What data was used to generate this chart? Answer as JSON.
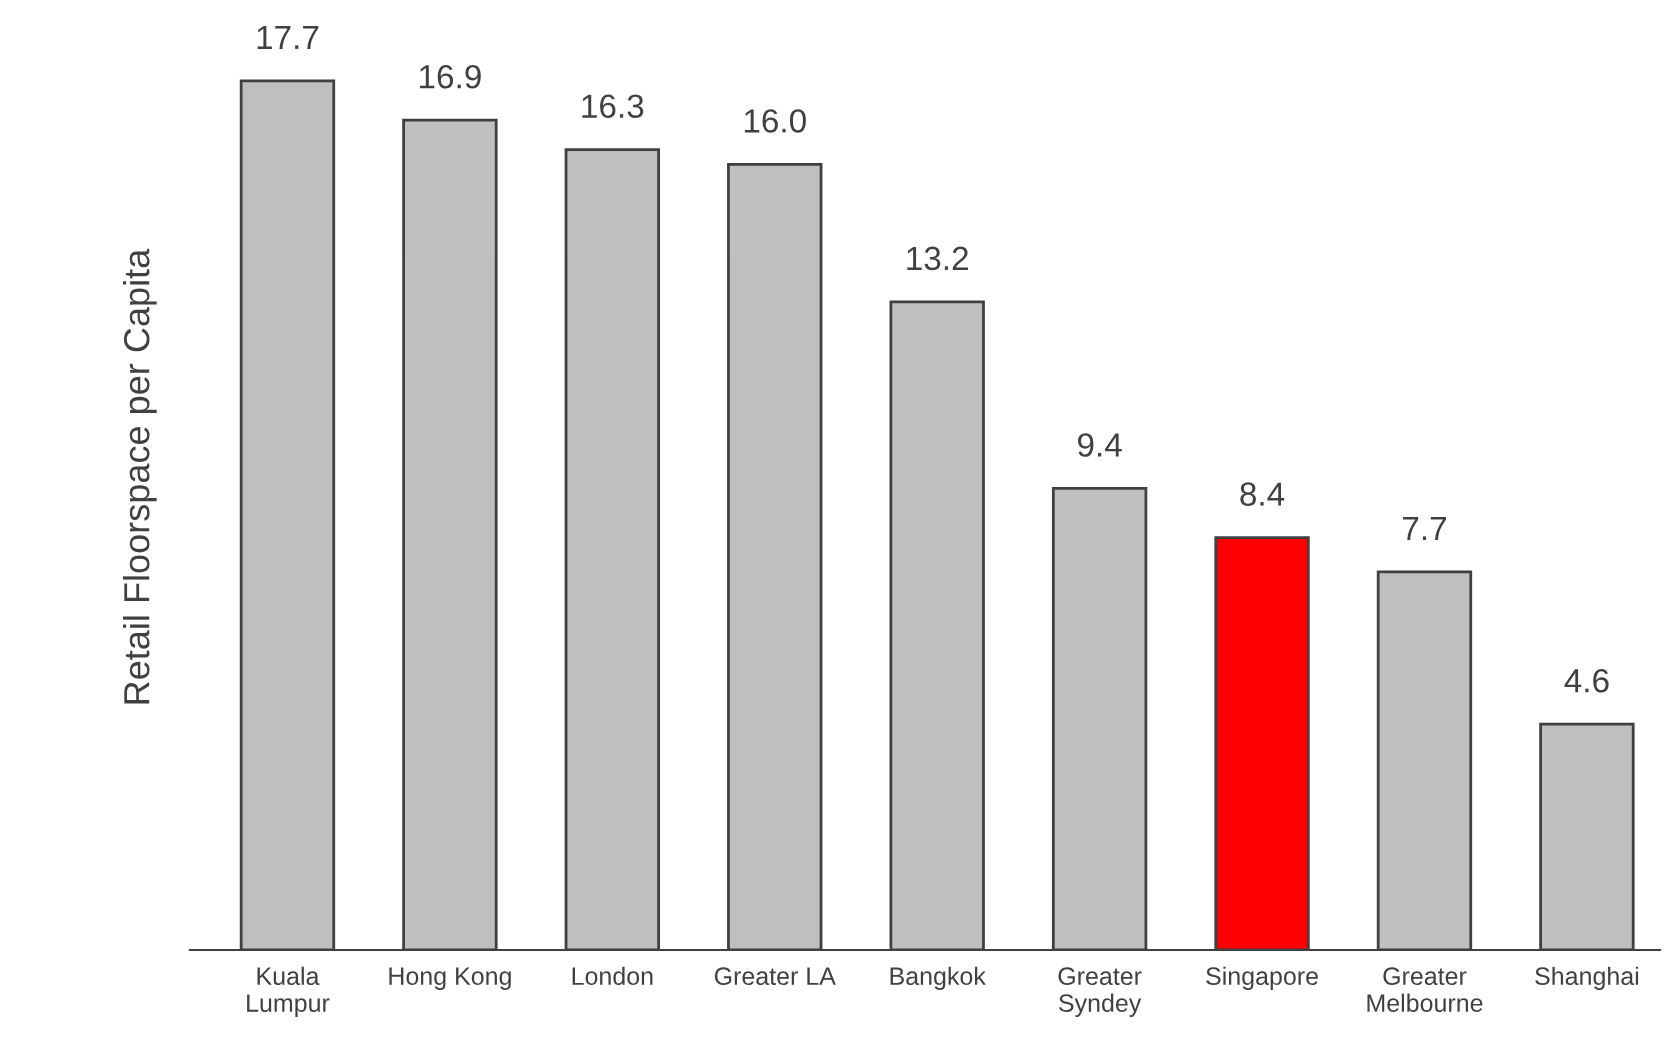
{
  "chart_data": {
    "type": "bar",
    "ylabel": "Retail Floorspace per Capita",
    "categories": [
      "Kuala\nLumpur",
      "Hong Kong",
      "London",
      "Greater LA",
      "Bangkok",
      "Greater\nSyndey",
      "Singapore",
      "Greater\nMelbourne",
      "Shanghai"
    ],
    "values": [
      17.7,
      16.9,
      16.3,
      16.0,
      13.2,
      9.4,
      8.4,
      7.7,
      4.6
    ],
    "colors": [
      "#bfbfbf",
      "#bfbfbf",
      "#bfbfbf",
      "#bfbfbf",
      "#bfbfbf",
      "#bfbfbf",
      "#ff0000",
      "#bfbfbf",
      "#bfbfbf"
    ],
    "value_labels": [
      "17.7",
      "16.9",
      "16.3",
      "16.0",
      "13.2",
      "9.4",
      "8.4",
      "7.7",
      "4.6"
    ],
    "grid": false,
    "legend": false
  }
}
